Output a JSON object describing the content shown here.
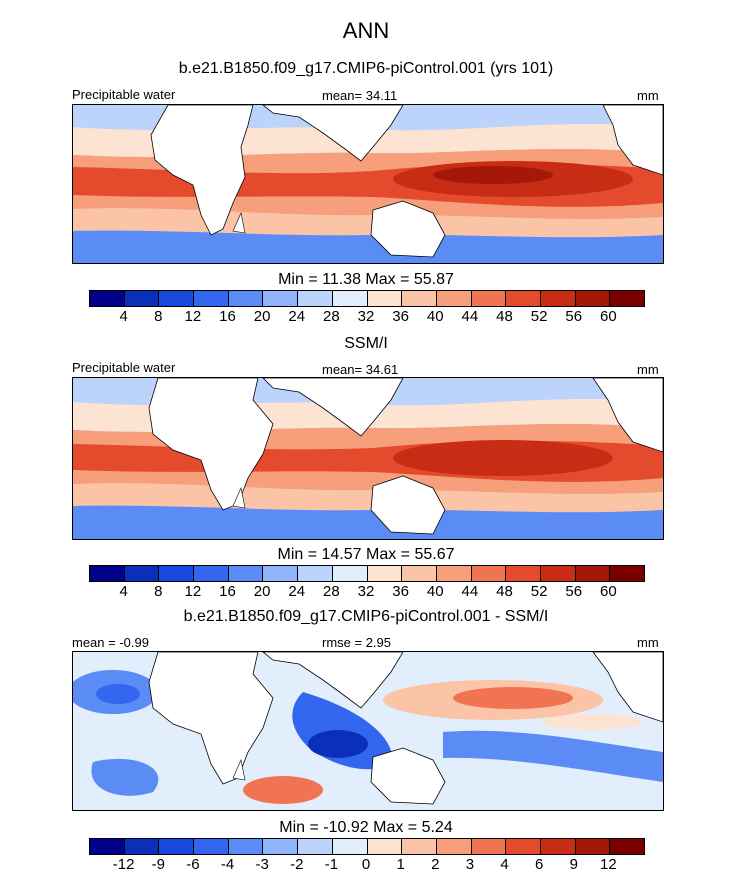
{
  "title": "ANN",
  "chart_data": [
    {
      "type": "heatmap",
      "title": "b.e21.B1850.f09_g17.CMIP6-piControl.001 (yrs 101)",
      "left_label": "Precipitable water",
      "center_label": "mean=  34.11",
      "right_label": "mm",
      "minmax_label": "Min =  11.38 Max =  55.87",
      "min": 11.38,
      "max": 55.87,
      "mean": 34.11,
      "colorbar_ticks": [
        "4",
        "8",
        "12",
        "16",
        "20",
        "24",
        "28",
        "32",
        "36",
        "40",
        "44",
        "48",
        "52",
        "56",
        "60"
      ]
    },
    {
      "type": "heatmap",
      "title": "SSM/I",
      "left_label": "Precipitable water",
      "center_label": "mean=  34.61",
      "right_label": "mm",
      "minmax_label": "Min =  14.57 Max =  55.67",
      "min": 14.57,
      "max": 55.67,
      "mean": 34.61,
      "colorbar_ticks": [
        "4",
        "8",
        "12",
        "16",
        "20",
        "24",
        "28",
        "32",
        "36",
        "40",
        "44",
        "48",
        "52",
        "56",
        "60"
      ]
    },
    {
      "type": "heatmap",
      "title": "b.e21.B1850.f09_g17.CMIP6-piControl.001 - SSM/I",
      "left_label": "mean =  -0.99",
      "center_label": "rmse =   2.95",
      "right_label": "mm",
      "minmax_label": "Min = -10.92 Max =   5.24",
      "min": -10.92,
      "max": 5.24,
      "mean": -0.99,
      "rmse": 2.95,
      "colorbar_ticks": [
        "-12",
        "-9",
        "-6",
        "-4",
        "-3",
        "-2",
        "-1",
        "0",
        "1",
        "2",
        "3",
        "4",
        "6",
        "9",
        "12"
      ]
    }
  ],
  "colors": {
    "levels": [
      "#00008b",
      "#0a2fb8",
      "#1848dc",
      "#3366ee",
      "#5b8cf5",
      "#8fb4f9",
      "#bcd3fb",
      "#e3eefc",
      "#fde4d2",
      "#fbc4a6",
      "#f79f7b",
      "#f07451",
      "#e44a2c",
      "#c92c15",
      "#a51708",
      "#7a0000"
    ],
    "land": "#ffffff",
    "coast": "#000000"
  }
}
